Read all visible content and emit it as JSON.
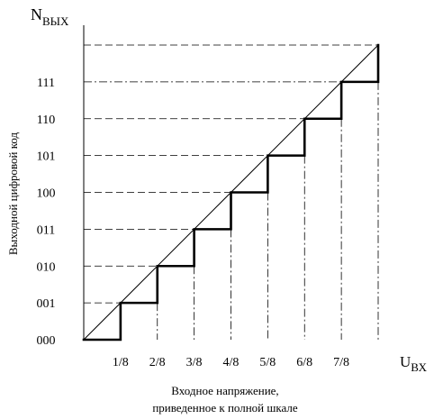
{
  "chart_data": {
    "type": "line",
    "y_axis": {
      "title_main": "N",
      "title_sub": "ВЫХ",
      "side_label": "Выходной цифровой код",
      "ticks": [
        "000",
        "001",
        "010",
        "011",
        "100",
        "101",
        "110",
        "111"
      ]
    },
    "x_axis": {
      "title_main": "U",
      "title_sub": "ВХ",
      "caption_lines": [
        "Входное напряжение,",
        "приведенное к полной шкале"
      ],
      "ticks": [
        "1/8",
        "2/8",
        "3/8",
        "4/8",
        "5/8",
        "6/8",
        "7/8"
      ]
    },
    "x_range": [
      0,
      1
    ],
    "y_range": [
      0,
      8
    ],
    "series": [
      {
        "kind": "ideal_line",
        "x": [
          0,
          1
        ],
        "y": [
          0,
          8
        ]
      },
      {
        "kind": "staircase",
        "x": [
          0,
          0.125,
          0.25,
          0.375,
          0.5,
          0.625,
          0.75,
          0.875,
          1
        ],
        "y": [
          0,
          1,
          2,
          3,
          4,
          5,
          6,
          7,
          8
        ]
      }
    ]
  }
}
